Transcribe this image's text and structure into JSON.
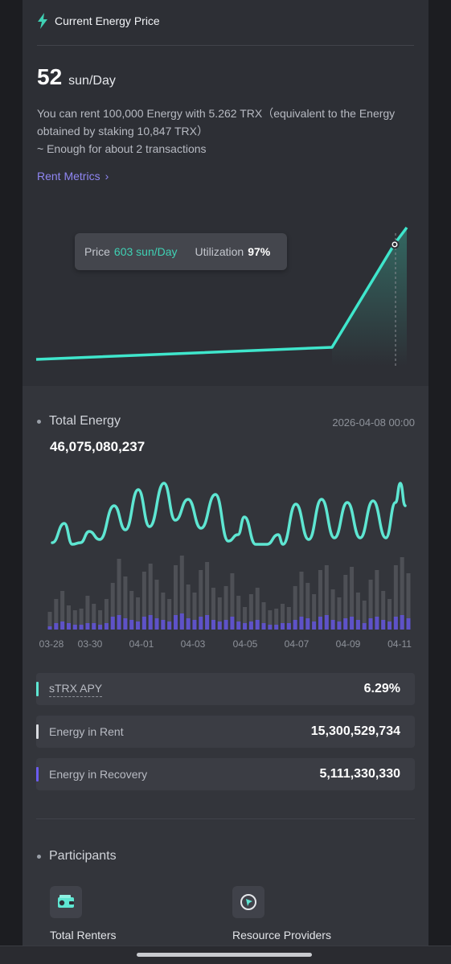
{
  "header": {
    "title": "Current Energy Price",
    "icon": "bolt-icon"
  },
  "price": {
    "value": "52",
    "unit": "sun/Day"
  },
  "description": {
    "line1": "You can rent 100,000 Energy with 5.262 TRX（equivalent to the Energy obtained by staking 10,847 TRX）",
    "line2": "~ Enough for about 2 transactions"
  },
  "rent_link": {
    "label": "Rent Metrics",
    "chevron": "›"
  },
  "tooltip": {
    "price_label": "Price",
    "price_value": "603 sun/Day",
    "util_label": "Utilization",
    "util_value": "97%"
  },
  "total_energy": {
    "label": "Total Energy",
    "timestamp": "2026-04-08 00:00",
    "value": "46,075,080,237"
  },
  "chart_dates": [
    "03-28",
    "03-30",
    "04-01",
    "04-03",
    "04-05",
    "04-07",
    "04-09",
    "04-11"
  ],
  "metrics": [
    {
      "label": "sTRX APY",
      "value": "6.29%",
      "color": "#5ee6d2"
    },
    {
      "label": "Energy in Rent",
      "value": "15,300,529,734",
      "color": "#d9dbe0"
    },
    {
      "label": "Energy in Recovery",
      "value": "5,111,330,330",
      "color": "#6b5cf0"
    }
  ],
  "participants": {
    "title": "Participants",
    "items": [
      {
        "label": "Total Renters",
        "icon": "wallet-icon"
      },
      {
        "label": "Resource Providers",
        "icon": "provider-icon"
      }
    ]
  },
  "colors": {
    "accent": "#3fd1b4",
    "link": "#8f86f2",
    "bar_gray": "#5a5c62",
    "bar_purple": "#6b5cf0"
  }
}
